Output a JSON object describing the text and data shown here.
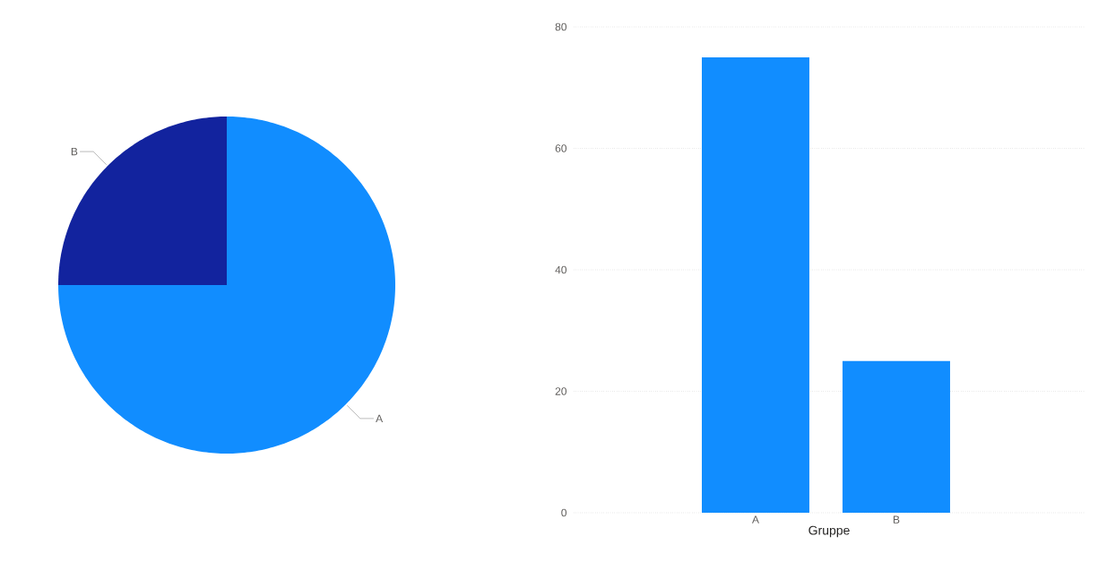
{
  "chart_data": [
    {
      "type": "pie",
      "categories": [
        "A",
        "B"
      ],
      "values": [
        75,
        25
      ],
      "colors": [
        "#118dff",
        "#12239e"
      ]
    },
    {
      "type": "bar",
      "categories": [
        "A",
        "B"
      ],
      "values": [
        75,
        25
      ],
      "color": "#118dff",
      "ylim": [
        0,
        80
      ],
      "yticks": [
        0,
        20,
        40,
        60,
        80
      ],
      "grid": "y",
      "xlabel": "Gruppe"
    }
  ]
}
